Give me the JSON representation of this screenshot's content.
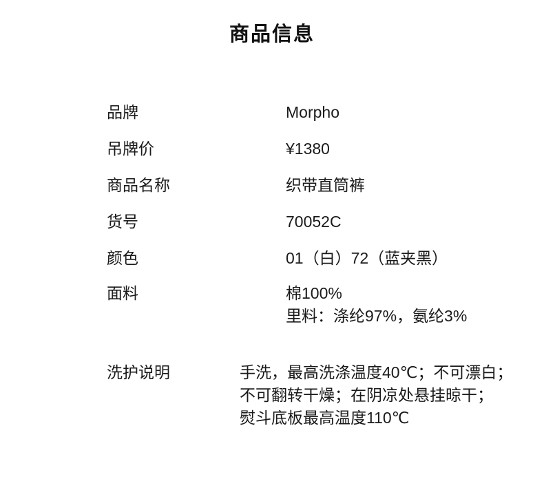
{
  "page": {
    "title": "商品信息",
    "background": "#ffffff",
    "text_color": "#1a1a1a"
  },
  "product_info": {
    "rows": [
      {
        "label": "品牌",
        "value": "Morpho"
      },
      {
        "label": "吊牌价",
        "value": "¥1380"
      },
      {
        "label": "商品名称",
        "value": "织带直筒裤"
      },
      {
        "label": "货号",
        "value": "70052C"
      },
      {
        "label": "颜色",
        "value": "01（白）72（蓝夹黑）"
      },
      {
        "label": "面料",
        "value": "棉100%\n里料：涤纶97%，氨纶3%"
      },
      {
        "label": "洗护说明",
        "value": "手洗，最高洗涤温度40℃；不可漂白；\n不可翻转干燥；在阴凉处悬挂晾干；\n熨斗底板最高温度110℃"
      }
    ]
  }
}
